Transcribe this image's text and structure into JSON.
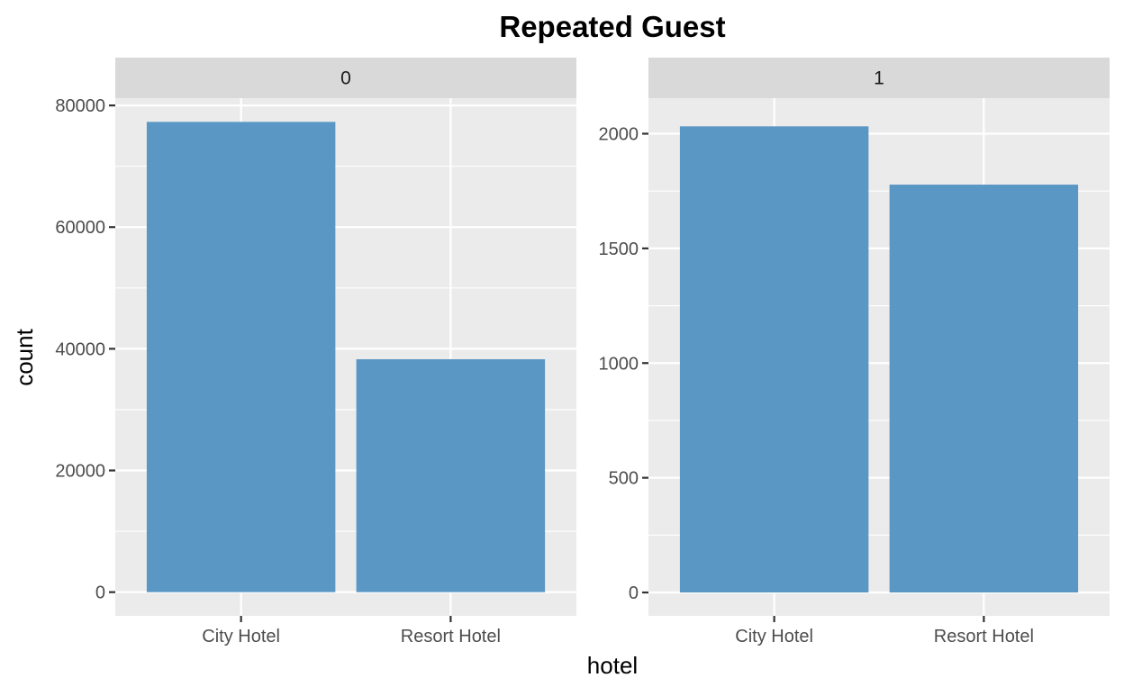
{
  "chart_data": {
    "type": "bar",
    "title": "Repeated Guest",
    "xlabel": "hotel",
    "ylabel": "count",
    "facet_variable": "is_repeated_guest",
    "bar_color": "#5b97c4",
    "panel_background": "#ebebeb",
    "strip_background": "#d9d9d9",
    "grid": true,
    "legend": "none",
    "categories": [
      "City Hotel",
      "Resort Hotel"
    ],
    "panels": [
      {
        "label": "0",
        "values": [
          77298,
          38282
        ],
        "ylim": [
          -3900,
          81200
        ],
        "yticks": [
          0,
          20000,
          40000,
          60000,
          80000
        ],
        "yticklabels": [
          "0",
          "20000",
          "40000",
          "60000",
          "80000"
        ]
      },
      {
        "label": "1",
        "values": [
          2032,
          1778
        ],
        "ylim": [
          -102,
          2155
        ],
        "yticks": [
          0,
          500,
          1000,
          1500,
          2000
        ],
        "yticklabels": [
          "0",
          "500",
          "1000",
          "1500",
          "2000"
        ]
      }
    ]
  }
}
